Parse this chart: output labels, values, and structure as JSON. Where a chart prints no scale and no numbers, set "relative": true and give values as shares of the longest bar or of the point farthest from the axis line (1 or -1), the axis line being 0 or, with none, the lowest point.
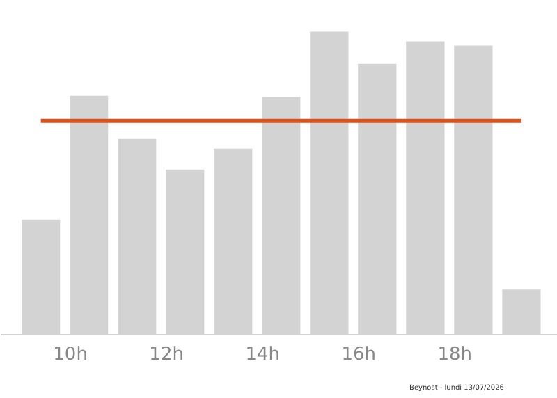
{
  "chart_data": {
    "type": "bar",
    "relative": true,
    "x": [
      9.4,
      10.4,
      11.4,
      12.4,
      13.4,
      14.4,
      15.4,
      16.4,
      17.4,
      18.4,
      19.4
    ],
    "values": [
      0.378,
      0.788,
      0.645,
      0.544,
      0.613,
      0.783,
      1,
      0.894,
      0.968,
      0.954,
      0.147
    ],
    "color": "#d3d3d3",
    "xlim": [
      8.55,
      20.14
    ],
    "xticks": [
      {
        "value": 10,
        "label": "10h"
      },
      {
        "value": 12,
        "label": "12h"
      },
      {
        "value": 14,
        "label": "14h"
      },
      {
        "value": 16,
        "label": "16h"
      },
      {
        "value": 18,
        "label": "18h"
      }
    ],
    "ref_lines": [
      {
        "axis": "y",
        "value": 0.705,
        "color": "#d9531e"
      }
    ],
    "grid": false,
    "annotations": [
      "Beynost - lundi 13/07/2026"
    ]
  }
}
